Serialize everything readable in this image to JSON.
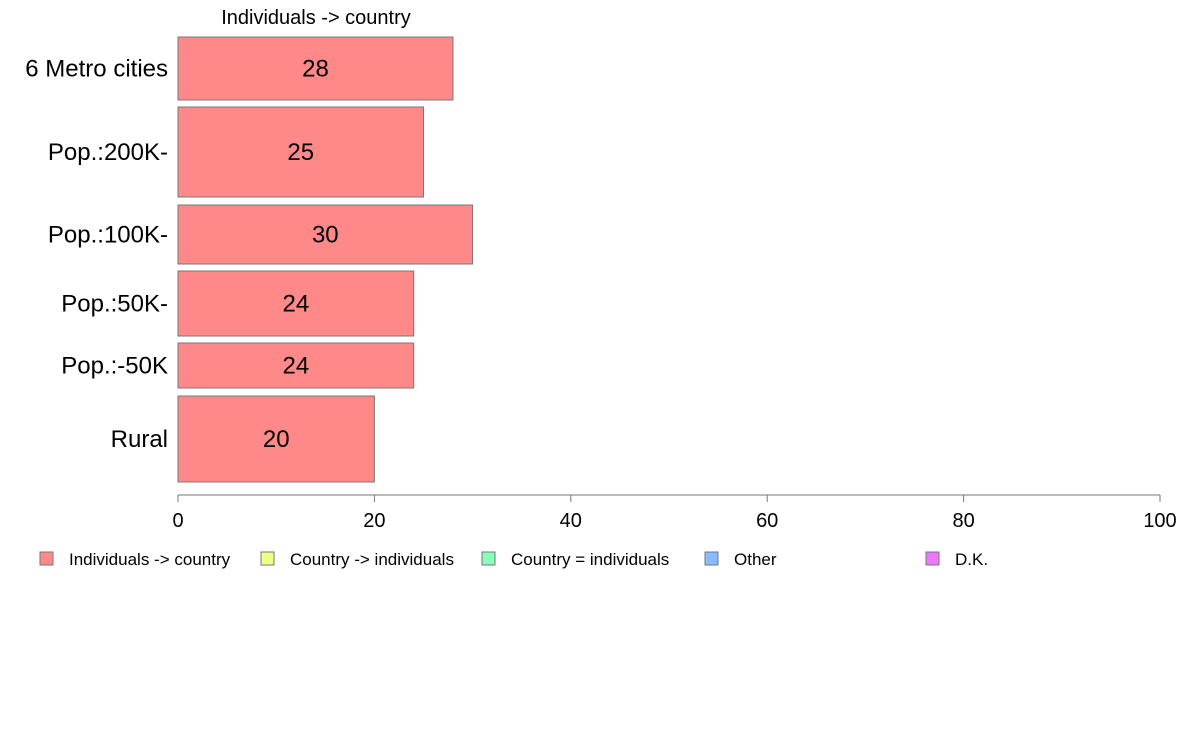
{
  "chart_data": {
    "type": "bar",
    "orientation": "horizontal",
    "title": "Individuals -> country",
    "categories": [
      "6 Metro cities",
      "Pop.:200K-",
      "Pop.:100K-",
      "Pop.:50K-",
      "Pop.:-50K",
      "Rural"
    ],
    "series": [
      {
        "name": "Individuals -> country",
        "values": [
          28,
          25,
          30,
          24,
          24,
          20
        ],
        "color": "#ff8888"
      }
    ],
    "data_labels": [
      "28",
      "25",
      "30",
      "24",
      "24",
      "20"
    ],
    "xlim": [
      0,
      100
    ],
    "xticks": [
      0,
      20,
      40,
      60,
      80,
      100
    ],
    "grid": false,
    "legend": {
      "position": "bottom",
      "entries": [
        {
          "label": "Individuals -> country",
          "color": "#ff8888"
        },
        {
          "label": "Country -> individuals",
          "color": "#f0ff88"
        },
        {
          "label": "Country = individuals",
          "color": "#88ffbb"
        },
        {
          "label": "Other",
          "color": "#88bbff"
        },
        {
          "label": "D.K.",
          "color": "#ee77ff"
        }
      ]
    },
    "colors": {
      "bar_stroke": "#777777",
      "axis": "#777777"
    }
  }
}
